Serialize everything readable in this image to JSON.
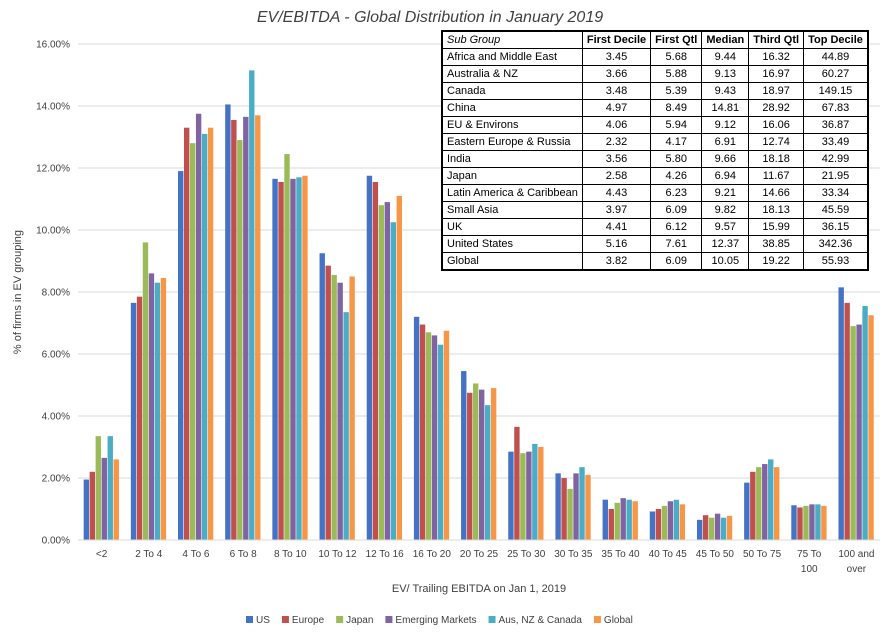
{
  "chart_data": {
    "type": "bar",
    "title": "EV/EBITDA - Global Distribution in January 2019",
    "xlabel": "EV/ Trailing EBITDA on Jan 1, 2019",
    "ylabel": "% of firms in EV grouping",
    "ylim": [
      0,
      16
    ],
    "yticks": [
      "0.00%",
      "2.00%",
      "4.00%",
      "6.00%",
      "8.00%",
      "10.00%",
      "12.00%",
      "14.00%",
      "16.00%"
    ],
    "categories": [
      "<2",
      "2 To 4",
      "4 To 6",
      "6 To 8",
      "8 To 10",
      "10 To 12",
      "12 To 16",
      "16 To 20",
      "20 To 25",
      "25 To 30",
      "30 To 35",
      "35 To 40",
      "40 To 45",
      "45 To 50",
      "50 To 75",
      "75 To 100",
      "100 and over"
    ],
    "series": [
      {
        "name": "US",
        "color": "#4472C4",
        "values": [
          1.95,
          7.65,
          11.9,
          14.05,
          11.65,
          9.25,
          11.75,
          7.2,
          5.45,
          2.85,
          2.15,
          1.3,
          0.92,
          0.65,
          1.85,
          1.12,
          8.15
        ]
      },
      {
        "name": "Europe",
        "color": "#C0504D",
        "values": [
          2.2,
          7.85,
          13.3,
          13.55,
          11.55,
          8.85,
          11.55,
          6.95,
          4.75,
          3.65,
          2.0,
          1.0,
          1.0,
          0.8,
          2.2,
          1.05,
          7.65
        ]
      },
      {
        "name": "Japan",
        "color": "#9BBB59",
        "values": [
          3.35,
          9.6,
          12.8,
          12.9,
          12.45,
          8.55,
          10.8,
          6.7,
          5.05,
          2.8,
          1.65,
          1.2,
          1.1,
          0.72,
          2.35,
          1.1,
          6.9
        ]
      },
      {
        "name": "Emerging Markets",
        "color": "#8064A2",
        "values": [
          2.65,
          8.6,
          13.75,
          13.65,
          11.65,
          8.3,
          10.9,
          6.6,
          4.85,
          2.85,
          2.15,
          1.35,
          1.25,
          0.85,
          2.45,
          1.15,
          6.95
        ]
      },
      {
        "name": "Aus, NZ & Canada",
        "color": "#4BACC6",
        "values": [
          3.35,
          8.3,
          13.1,
          15.15,
          11.7,
          7.35,
          10.25,
          6.3,
          4.35,
          3.1,
          2.35,
          1.3,
          1.3,
          0.72,
          2.6,
          1.15,
          7.55
        ]
      },
      {
        "name": "Global",
        "color": "#F79646",
        "values": [
          2.6,
          8.45,
          13.3,
          13.7,
          11.75,
          8.5,
          11.1,
          6.75,
          4.9,
          3.0,
          2.1,
          1.25,
          1.15,
          0.78,
          2.35,
          1.1,
          7.25
        ]
      }
    ]
  },
  "table": {
    "headers": [
      "Sub Group",
      "First Decile",
      "First Qtl",
      "Median",
      "Third Qtl",
      "Top Decile"
    ],
    "rows": [
      [
        "Africa and Middle East",
        "3.45",
        "5.68",
        "9.44",
        "16.32",
        "44.89"
      ],
      [
        "Australia & NZ",
        "3.66",
        "5.88",
        "9.13",
        "16.97",
        "60.27"
      ],
      [
        "Canada",
        "3.48",
        "5.39",
        "9.43",
        "18.97",
        "149.15"
      ],
      [
        "China",
        "4.97",
        "8.49",
        "14.81",
        "28.92",
        "67.83"
      ],
      [
        "EU & Environs",
        "4.06",
        "5.94",
        "9.12",
        "16.06",
        "36.87"
      ],
      [
        "Eastern Europe & Russia",
        "2.32",
        "4.17",
        "6.91",
        "12.74",
        "33.49"
      ],
      [
        "India",
        "3.56",
        "5.80",
        "9.66",
        "18.18",
        "42.99"
      ],
      [
        "Japan",
        "2.58",
        "4.26",
        "6.94",
        "11.67",
        "21.95"
      ],
      [
        "Latin America & Caribbean",
        "4.43",
        "6.23",
        "9.21",
        "14.66",
        "33.34"
      ],
      [
        "Small Asia",
        "3.97",
        "6.09",
        "9.82",
        "18.13",
        "45.59"
      ],
      [
        "UK",
        "4.41",
        "6.12",
        "9.57",
        "15.99",
        "36.15"
      ],
      [
        "United States",
        "5.16",
        "7.61",
        "12.37",
        "38.85",
        "342.36"
      ],
      [
        "Global",
        "3.82",
        "6.09",
        "10.05",
        "19.22",
        "55.93"
      ]
    ]
  }
}
